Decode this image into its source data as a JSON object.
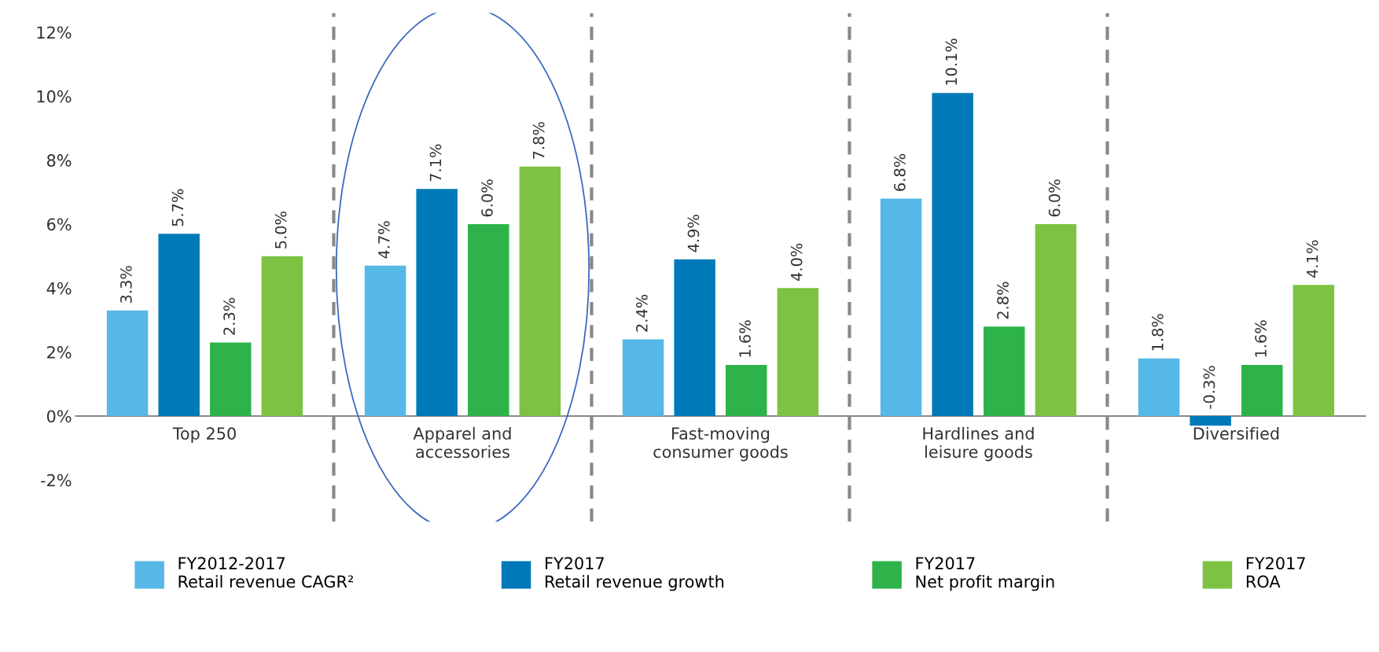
{
  "chart_data": {
    "type": "bar",
    "categories": [
      "Top 250",
      "Apparel and\naccessories",
      "Fast-moving\nconsumer goods",
      "Hardlines and\nleisure goods",
      "Diversified"
    ],
    "series": [
      {
        "name": "FY2012-2017\nRetail revenue CAGR²",
        "color": "#56b8e6",
        "values": [
          3.3,
          4.7,
          2.4,
          6.8,
          1.8
        ]
      },
      {
        "name": "FY2017\nRetail revenue growth",
        "color": "#0079b8",
        "values": [
          5.7,
          7.1,
          4.9,
          10.1,
          -0.3
        ]
      },
      {
        "name": "FY2017\nNet profit margin",
        "color": "#2db34a",
        "values": [
          2.3,
          6.0,
          1.6,
          2.8,
          1.6
        ]
      },
      {
        "name": "FY2017\nROA",
        "color": "#7dc242",
        "values": [
          5.0,
          7.8,
          4.0,
          6.0,
          4.1
        ]
      }
    ],
    "value_labels": [
      [
        "3.3%",
        "4.7%",
        "2.4%",
        "6.8%",
        "1.8%"
      ],
      [
        "5.7%",
        "7.1%",
        "4.9%",
        "10.1%",
        "-0.3%"
      ],
      [
        "2.3%",
        "6.0%",
        "1.6%",
        "2.8%",
        "1.6%"
      ],
      [
        "5.0%",
        "7.8%",
        "4.0%",
        "6.0%",
        "4.1%"
      ]
    ],
    "ylim": [
      -3.3,
      12.6
    ],
    "yticks": [
      {
        "value": -2,
        "label": "-2%"
      },
      {
        "value": 0,
        "label": "0%"
      },
      {
        "value": 2,
        "label": "2%"
      },
      {
        "value": 4,
        "label": "4%"
      },
      {
        "value": 6,
        "label": "6%"
      },
      {
        "value": 8,
        "label": "8%"
      },
      {
        "value": 10,
        "label": "10%"
      },
      {
        "value": 12,
        "label": "12%"
      }
    ],
    "grid": "x",
    "legend": "bottom"
  }
}
